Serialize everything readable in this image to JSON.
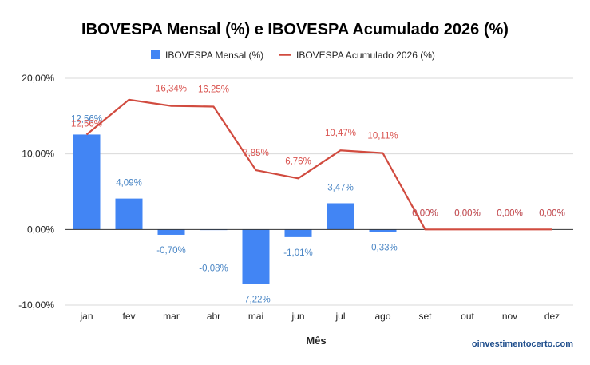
{
  "chart_data": {
    "type": "bar",
    "title": "IBOVESPA Mensal (%) e IBOVESPA Acumulado 2026 (%)",
    "xlabel": "Mês",
    "ylabel": "",
    "categories": [
      "jan",
      "fev",
      "mar",
      "abr",
      "mai",
      "jun",
      "jul",
      "ago",
      "set",
      "out",
      "nov",
      "dez"
    ],
    "ylim": [
      -10,
      20
    ],
    "yticks": [
      -10,
      0,
      10,
      20
    ],
    "ytick_labels": [
      "-10,00%",
      "0,00%",
      "10,00%",
      "20,00%"
    ],
    "grid": true,
    "legend": "top",
    "series": [
      {
        "name": "IBOVESPA Mensal (%)",
        "type": "bar",
        "color": "#4285f4",
        "label_color": "#4a86c5",
        "values": [
          12.56,
          4.09,
          -0.7,
          -0.08,
          -7.22,
          -1.01,
          3.47,
          -0.33,
          0,
          0,
          0,
          0
        ],
        "labels": [
          "12,56%",
          "4,09%",
          "-0,70%",
          "-0,08%",
          "-7,22%",
          "-1,01%",
          "3,47%",
          "-0,33%",
          "0,00%",
          "0,00%",
          "0,00%",
          "0,00%"
        ]
      },
      {
        "name": "IBOVESPA Acumulado 2026 (%)",
        "type": "line",
        "color": "#d14b3f",
        "label_color": "#d9534f",
        "values": [
          12.56,
          17.16,
          16.34,
          16.25,
          7.85,
          6.76,
          10.47,
          10.11,
          0,
          0,
          0,
          0
        ],
        "labels": [
          "12,56%",
          "",
          "16,34%",
          "16,25%",
          "7,85%",
          "6,76%",
          "10,47%",
          "10,11%",
          "0,00%",
          "0,00%",
          "0,00%",
          "0,00%"
        ]
      }
    ]
  },
  "watermark": "oinvestimentocerto.com"
}
